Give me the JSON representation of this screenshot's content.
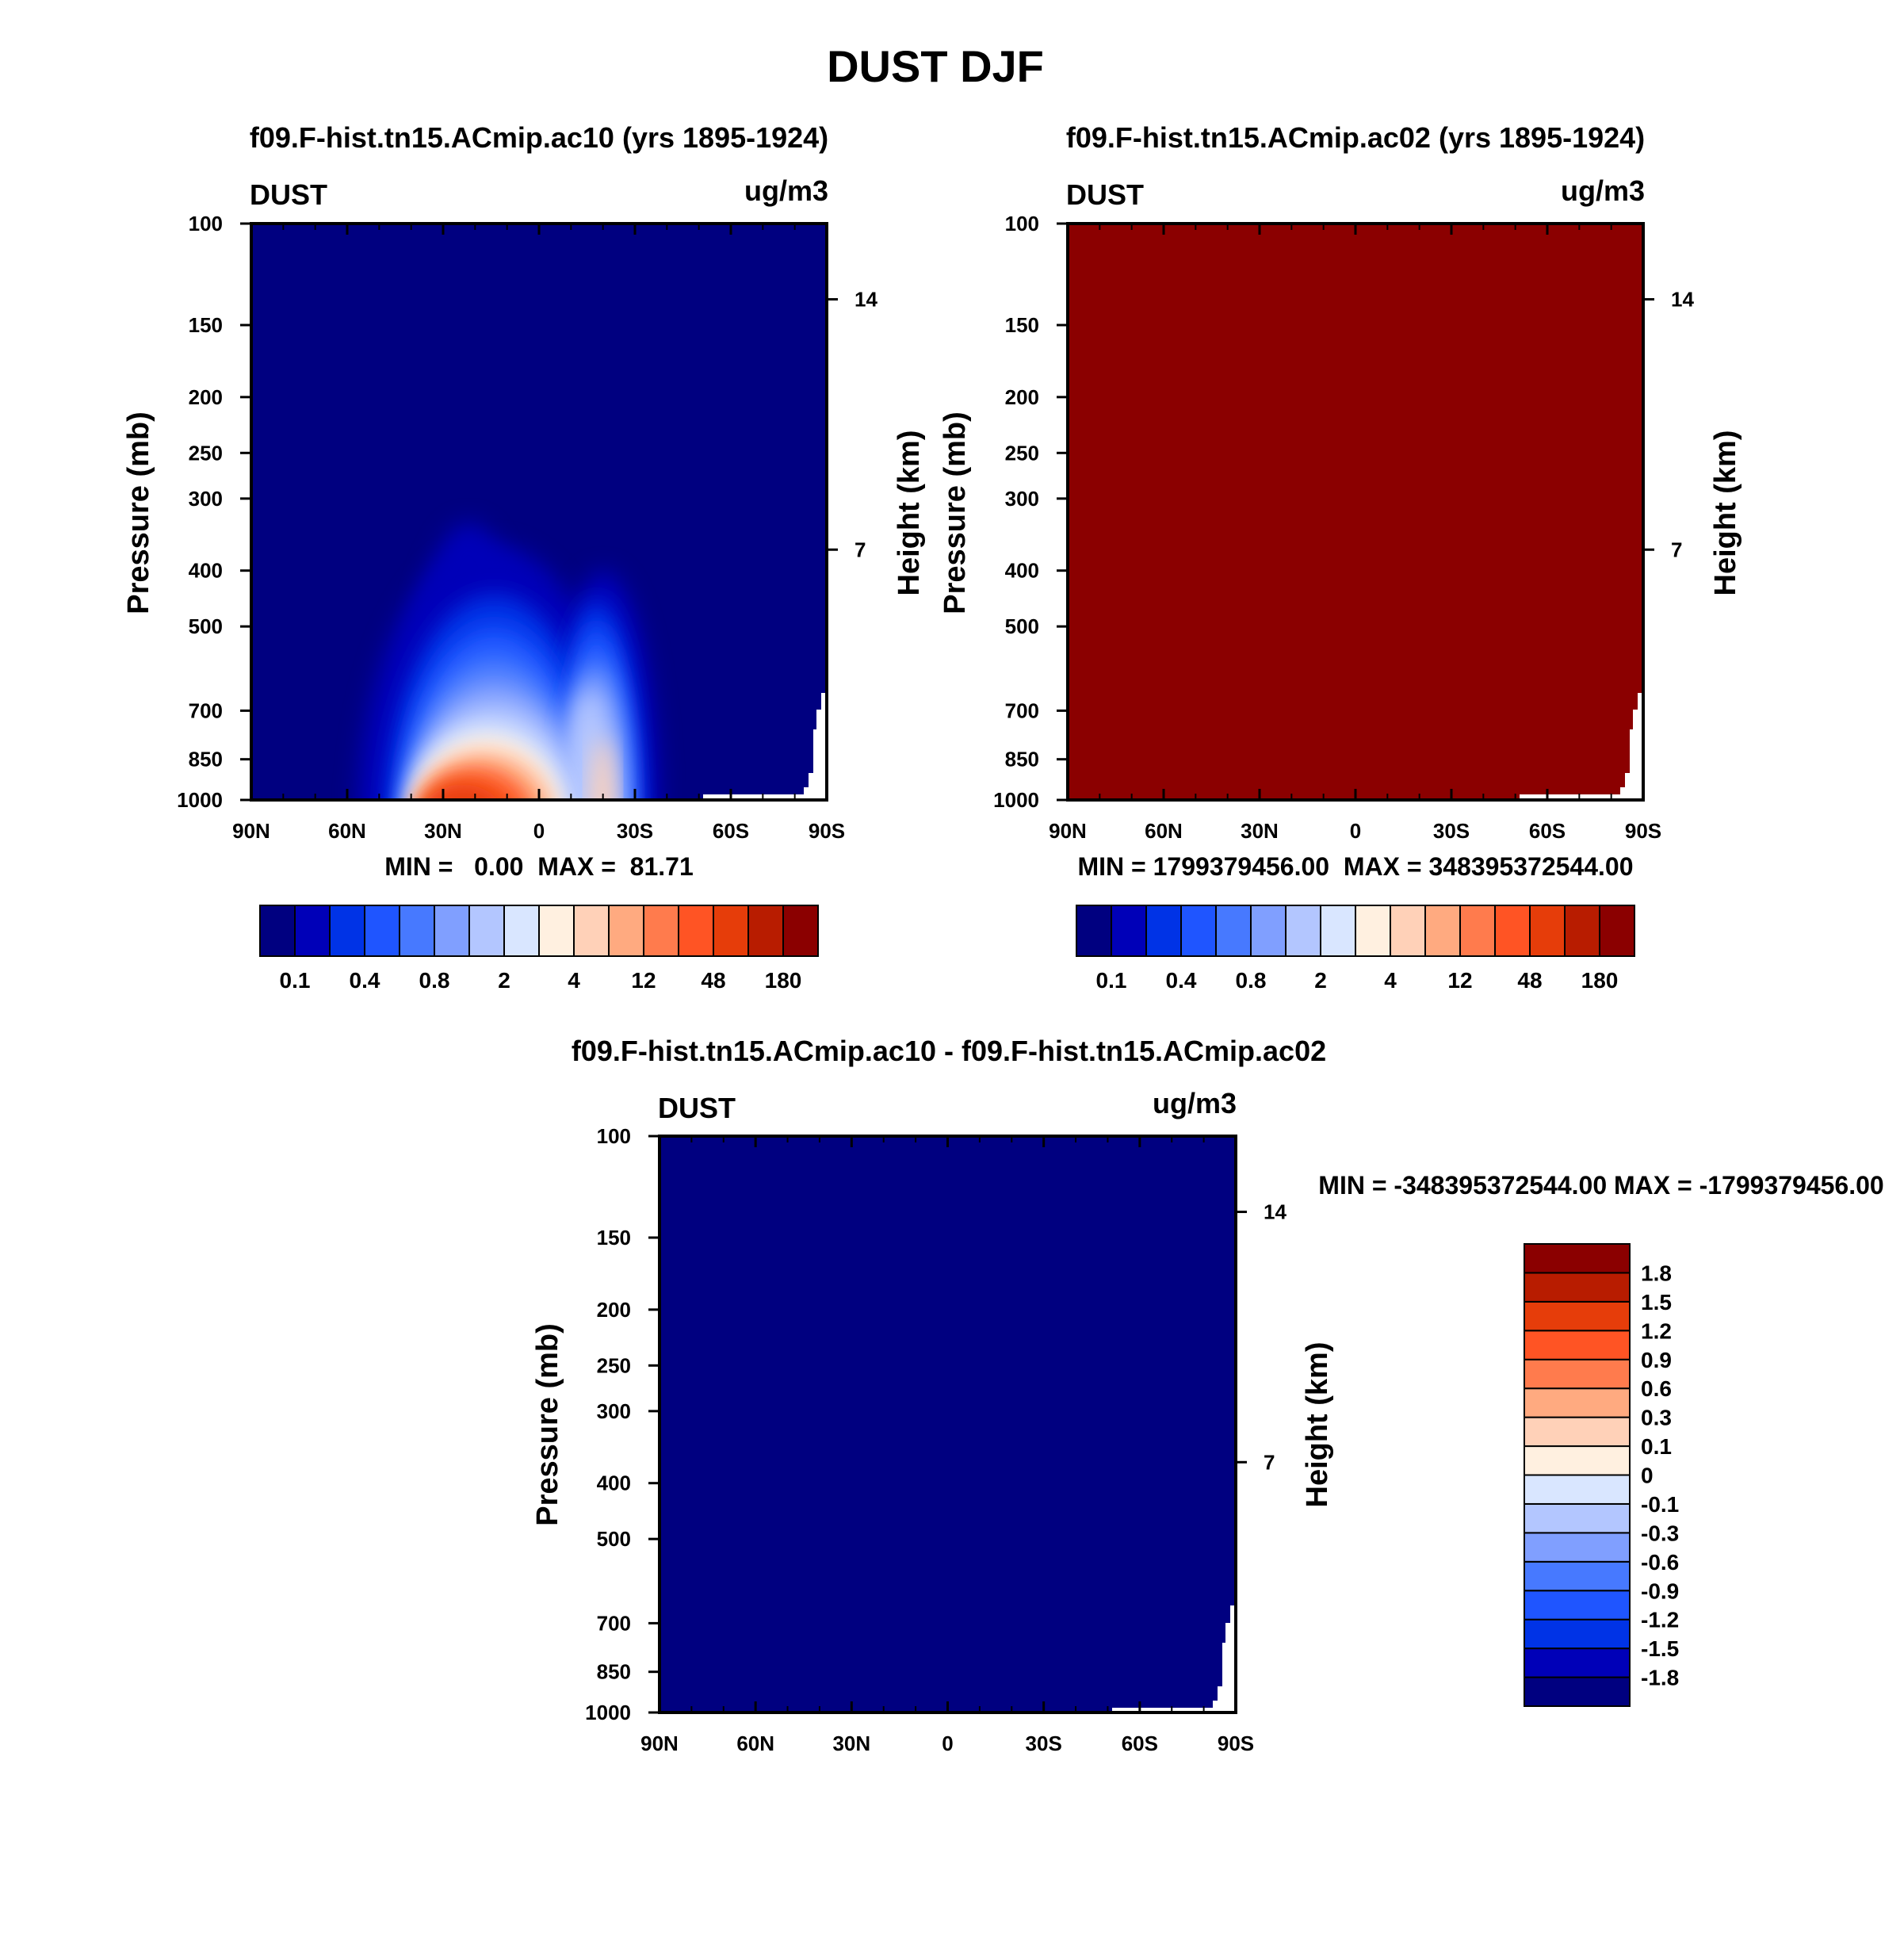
{
  "figure_title": "DUST DJF",
  "colors": {
    "lev": [
      "#000080",
      "#0000b8",
      "#0033e6",
      "#1f55ff",
      "#4779ff",
      "#809fff",
      "#b3c6ff",
      "#d9e6ff",
      "#fff0e0",
      "#ffd1b8",
      "#ffaa80",
      "#ff7b4d",
      "#ff5424",
      "#e63d0a",
      "#b81c00",
      "#8b0000"
    ],
    "grad": [
      "#000080",
      "#0000b8",
      "#0033e6",
      "#1f55ff",
      "#4779ff",
      "#809fff",
      "#b3c6ff",
      "#d9e6ff",
      "#fff0e0",
      "#ffd1b8",
      "#ffaa80",
      "#ff7b4d",
      "#ff5424",
      "#e63d0a",
      "#b81c00",
      "#8b0000"
    ]
  },
  "chart_data": [
    {
      "type": "heatmap",
      "title": "f09.F-hist.tn15.ACmip.ac10 (yrs 1895-1924)",
      "left_string": "DUST",
      "right_string": "ug/m3",
      "ylabel": "Pressure (mb)",
      "ylabel_right": "Height (km)",
      "x_ticks": [
        "90N",
        "60N",
        "30N",
        "0",
        "30S",
        "60S",
        "90S"
      ],
      "x_range": [
        90,
        -90
      ],
      "y_ticks": [
        100,
        150,
        200,
        250,
        300,
        400,
        500,
        700,
        850,
        1000
      ],
      "y_range": [
        100,
        1000
      ],
      "y_right_ticks": [
        14,
        7
      ],
      "min_max_text": "MIN =   0.00  MAX =  81.71",
      "min": 0.0,
      "max": 81.71,
      "colorbar_labels": [
        "0.1",
        "0.4",
        "0.8",
        "2",
        "4",
        "12",
        "48",
        "180"
      ],
      "colorbar_levels": [
        0.05,
        0.1,
        0.2,
        0.4,
        0.6,
        0.8,
        1,
        2,
        3,
        4,
        8,
        12,
        24,
        48,
        100,
        180
      ],
      "field": "structured: near-zero background with dust maxima at ~28N-10N near surface and ~20S, extending up to ~330 mb",
      "fill_value": null
    },
    {
      "type": "heatmap",
      "title": "f09.F-hist.tn15.ACmip.ac02 (yrs 1895-1924)",
      "left_string": "DUST",
      "right_string": "ug/m3",
      "ylabel": "Pressure (mb)",
      "ylabel_right": "Height (km)",
      "x_ticks": [
        "90N",
        "60N",
        "30N",
        "0",
        "30S",
        "60S",
        "90S"
      ],
      "x_range": [
        90,
        -90
      ],
      "y_ticks": [
        100,
        150,
        200,
        250,
        300,
        400,
        500,
        700,
        850,
        1000
      ],
      "y_range": [
        100,
        1000
      ],
      "y_right_ticks": [
        14,
        7
      ],
      "min_max_text": "MIN = 1799379456.00  MAX = 348395372544.00",
      "min": 1799379456.0,
      "max": 348395372544.0,
      "colorbar_labels": [
        "0.1",
        "0.4",
        "0.8",
        "2",
        "4",
        "12",
        "48",
        "180"
      ],
      "colorbar_levels": [
        0.05,
        0.1,
        0.2,
        0.4,
        0.6,
        0.8,
        1,
        2,
        3,
        4,
        8,
        12,
        24,
        48,
        100,
        180
      ],
      "field": "uniform",
      "fill_value": ">180"
    },
    {
      "type": "heatmap",
      "title": "f09.F-hist.tn15.ACmip.ac10 - f09.F-hist.tn15.ACmip.ac02",
      "left_string": "DUST",
      "right_string": "ug/m3",
      "ylabel": "Pressure (mb)",
      "ylabel_right": "Height (km)",
      "x_ticks": [
        "90N",
        "60N",
        "30N",
        "0",
        "30S",
        "60S",
        "90S"
      ],
      "x_range": [
        90,
        -90
      ],
      "y_ticks": [
        100,
        150,
        200,
        250,
        300,
        400,
        500,
        700,
        850,
        1000
      ],
      "y_range": [
        100,
        1000
      ],
      "y_right_ticks": [
        14,
        7
      ],
      "min_max_text": "MIN = -348395372544.00  MAX = -1799379456.00",
      "min": -348395372544.0,
      "max": -1799379456.0,
      "colorbar_labels": [
        "1.8",
        "1.5",
        "1.2",
        "0.9",
        "0.6",
        "0.3",
        "0.1",
        "0",
        "-0.1",
        "-0.3",
        "-0.6",
        "-0.9",
        "-1.2",
        "-1.5",
        "-1.8"
      ],
      "colorbar_levels": [
        -1.8,
        -1.5,
        -1.2,
        -0.9,
        -0.6,
        -0.3,
        -0.1,
        0,
        0.1,
        0.3,
        0.6,
        0.9,
        1.2,
        1.5,
        1.8
      ],
      "field": "uniform",
      "fill_value": "<-1.8"
    }
  ]
}
